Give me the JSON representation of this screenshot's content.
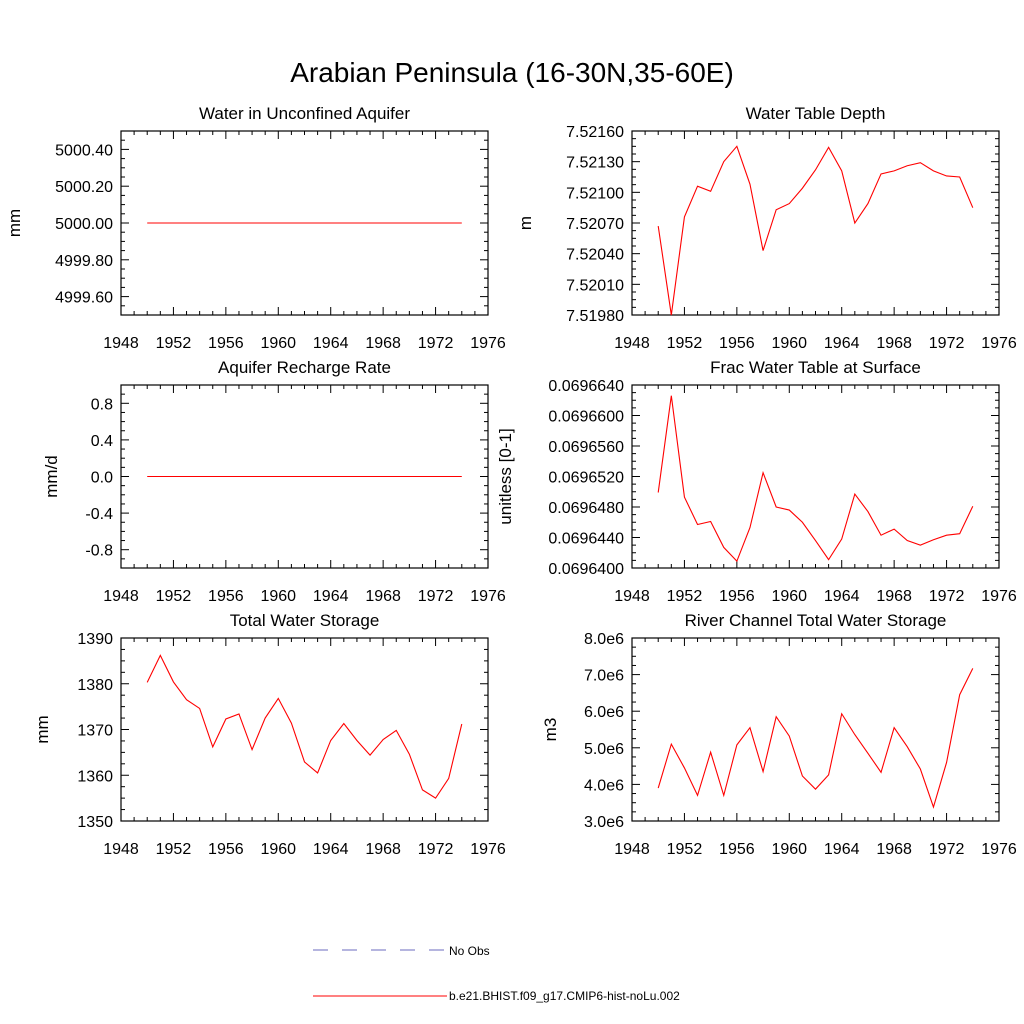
{
  "page": {
    "title": "Arabian Peninsula (16-30N,35-60E)"
  },
  "legend": [
    {
      "label": "No Obs",
      "color": "#6b6bbf",
      "dashed": true
    },
    {
      "label": "b.e21.BHIST.f09_g17.CMIP6-hist-noLu.002",
      "color": "#ff0000",
      "dashed": false
    }
  ],
  "chart_data": [
    {
      "type": "line",
      "title": "Water in Unconfined Aquifer",
      "ylabel": "mm",
      "xlim": [
        1948,
        1976
      ],
      "ylim": [
        4999.5,
        5000.5
      ],
      "xticks": [
        1948,
        1952,
        1956,
        1960,
        1964,
        1968,
        1972,
        1976
      ],
      "yticks": [
        4999.6,
        4999.8,
        5000.0,
        5000.2,
        5000.4
      ],
      "ytick_labels": [
        "4999.60",
        "4999.80",
        "5000.00",
        "5000.20",
        "5000.40"
      ],
      "series": [
        {
          "name": "b.e21.BHIST.f09_g17.CMIP6-hist-noLu.002",
          "x": [
            1950,
            1974
          ],
          "y": [
            5000.0,
            5000.0
          ]
        }
      ]
    },
    {
      "type": "line",
      "title": "Water Table Depth",
      "ylabel": "m",
      "xlim": [
        1948,
        1976
      ],
      "ylim": [
        7.5198,
        7.5216
      ],
      "xticks": [
        1948,
        1952,
        1956,
        1960,
        1964,
        1968,
        1972,
        1976
      ],
      "yticks": [
        7.5198,
        7.5201,
        7.5204,
        7.5207,
        7.521,
        7.5213,
        7.5216
      ],
      "ytick_labels": [
        "7.51980",
        "7.52010",
        "7.52040",
        "7.52070",
        "7.52100",
        "7.52130",
        "7.52160"
      ],
      "series": [
        {
          "name": "b.e21.BHIST.f09_g17.CMIP6-hist-noLu.002",
          "x": [
            1950,
            1951,
            1952,
            1953,
            1954,
            1955,
            1956,
            1957,
            1958,
            1959,
            1960,
            1961,
            1962,
            1963,
            1964,
            1965,
            1966,
            1967,
            1968,
            1969,
            1970,
            1971,
            1972,
            1973,
            1974
          ],
          "y": [
            7.52067,
            7.5198,
            7.52076,
            7.52106,
            7.52101,
            7.5213,
            7.52145,
            7.52108,
            7.52043,
            7.52083,
            7.52089,
            7.52104,
            7.52122,
            7.52144,
            7.52121,
            7.5207,
            7.52089,
            7.52118,
            7.52121,
            7.52126,
            7.52129,
            7.52121,
            7.52116,
            7.52115,
            7.52085
          ]
        }
      ]
    },
    {
      "type": "line",
      "title": "Aquifer Recharge Rate",
      "ylabel": "mm/d",
      "xlim": [
        1948,
        1976
      ],
      "ylim": [
        -1.0,
        1.0
      ],
      "xticks": [
        1948,
        1952,
        1956,
        1960,
        1964,
        1968,
        1972,
        1976
      ],
      "yticks": [
        -0.8,
        -0.4,
        0.0,
        0.4,
        0.8
      ],
      "ytick_labels": [
        "-0.8",
        "-0.4",
        "0.0",
        "0.4",
        "0.8"
      ],
      "series": [
        {
          "name": "b.e21.BHIST.f09_g17.CMIP6-hist-noLu.002",
          "x": [
            1950,
            1974
          ],
          "y": [
            0.0,
            0.0
          ]
        }
      ]
    },
    {
      "type": "line",
      "title": "Frac Water Table at Surface",
      "ylabel": "unitless [0-1]",
      "xlim": [
        1948,
        1976
      ],
      "ylim": [
        0.06964,
        0.069664
      ],
      "xticks": [
        1948,
        1952,
        1956,
        1960,
        1964,
        1968,
        1972,
        1976
      ],
      "yticks": [
        0.06964,
        0.069644,
        0.069648,
        0.069652,
        0.069656,
        0.06966,
        0.069664
      ],
      "ytick_labels": [
        "0.0696400",
        "0.0696440",
        "0.0696480",
        "0.0696520",
        "0.0696560",
        "0.0696600",
        "0.0696640"
      ],
      "series": [
        {
          "name": "b.e21.BHIST.f09_g17.CMIP6-hist-noLu.002",
          "x": [
            1950,
            1951,
            1952,
            1953,
            1954,
            1955,
            1956,
            1957,
            1958,
            1959,
            1960,
            1961,
            1962,
            1963,
            1964,
            1965,
            1966,
            1967,
            1968,
            1969,
            1970,
            1971,
            1972,
            1973,
            1974
          ],
          "y": [
            0.0696499,
            0.0696626,
            0.0696493,
            0.0696457,
            0.0696461,
            0.0696427,
            0.0696409,
            0.0696453,
            0.0696525,
            0.069648,
            0.0696476,
            0.069646,
            0.0696436,
            0.0696411,
            0.0696438,
            0.0696497,
            0.0696474,
            0.0696443,
            0.0696451,
            0.0696436,
            0.069643,
            0.0696437,
            0.0696443,
            0.0696445,
            0.0696481
          ]
        }
      ]
    },
    {
      "type": "line",
      "title": "Total Water Storage",
      "ylabel": "mm",
      "xlim": [
        1948,
        1976
      ],
      "ylim": [
        1350,
        1390
      ],
      "xticks": [
        1948,
        1952,
        1956,
        1960,
        1964,
        1968,
        1972,
        1976
      ],
      "yticks": [
        1350,
        1360,
        1370,
        1380,
        1390
      ],
      "ytick_labels": [
        "1350",
        "1360",
        "1370",
        "1380",
        "1390"
      ],
      "series": [
        {
          "name": "b.e21.BHIST.f09_g17.CMIP6-hist-noLu.002",
          "x": [
            1950,
            1951,
            1952,
            1953,
            1954,
            1955,
            1956,
            1957,
            1958,
            1959,
            1960,
            1961,
            1962,
            1963,
            1964,
            1965,
            1966,
            1967,
            1968,
            1969,
            1970,
            1971,
            1972,
            1973,
            1974
          ],
          "y": [
            1380.3,
            1386.2,
            1380.4,
            1376.5,
            1374.6,
            1366.2,
            1372.3,
            1373.4,
            1365.6,
            1372.5,
            1376.8,
            1371.4,
            1362.9,
            1360.5,
            1367.6,
            1371.3,
            1367.6,
            1364.4,
            1367.8,
            1369.8,
            1364.6,
            1356.8,
            1355.0,
            1359.3,
            1371.2
          ]
        }
      ]
    },
    {
      "type": "line",
      "title": "River Channel Total Water Storage",
      "ylabel": "m3",
      "xlim": [
        1948,
        1976
      ],
      "ylim": [
        3000000,
        8000000
      ],
      "xticks": [
        1948,
        1952,
        1956,
        1960,
        1964,
        1968,
        1972,
        1976
      ],
      "yticks": [
        3000000,
        4000000,
        5000000,
        6000000,
        7000000,
        8000000
      ],
      "ytick_labels": [
        "3.0e6",
        "4.0e6",
        "5.0e6",
        "6.0e6",
        "7.0e6",
        "8.0e6"
      ],
      "series": [
        {
          "name": "b.e21.BHIST.f09_g17.CMIP6-hist-noLu.002",
          "x": [
            1950,
            1951,
            1952,
            1953,
            1954,
            1955,
            1956,
            1957,
            1958,
            1959,
            1960,
            1961,
            1962,
            1963,
            1964,
            1965,
            1966,
            1967,
            1968,
            1969,
            1970,
            1971,
            1972,
            1973,
            1974
          ],
          "y": [
            3900000,
            5100000,
            4450000,
            3700000,
            4880000,
            3700000,
            5080000,
            5550000,
            4350000,
            5850000,
            5320000,
            4230000,
            3870000,
            4260000,
            5930000,
            5360000,
            4850000,
            4330000,
            5550000,
            5030000,
            4420000,
            3380000,
            4600000,
            6450000,
            7170000
          ]
        }
      ]
    }
  ]
}
